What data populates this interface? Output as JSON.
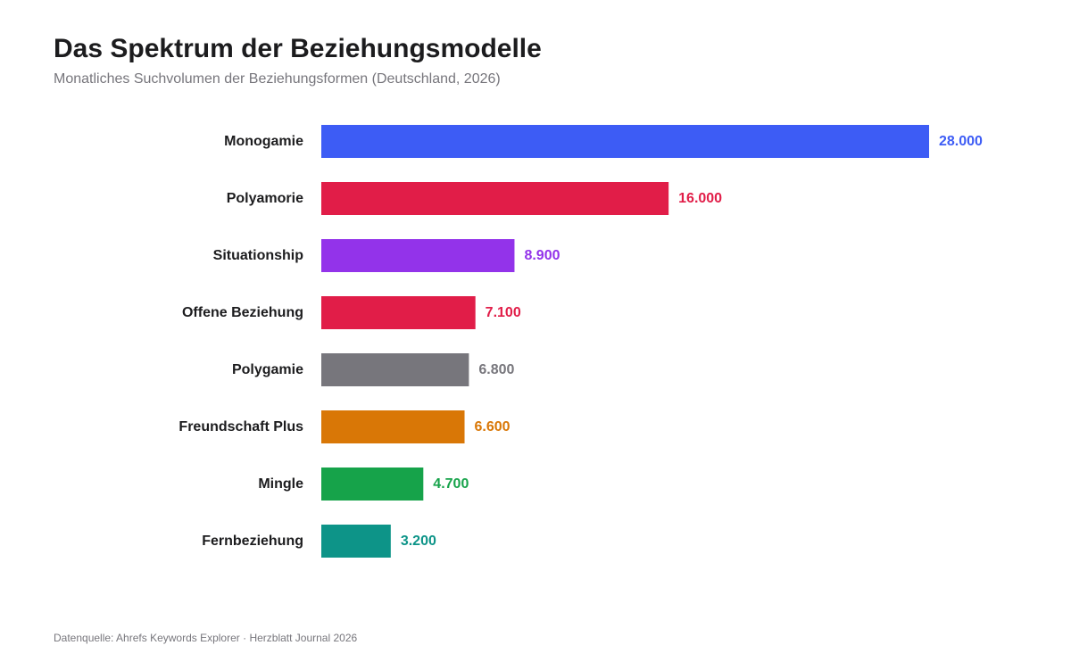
{
  "title": "Das Spektrum der Beziehungsmodelle",
  "subtitle": "Monatliches Suchvolumen der Beziehungsformen (Deutschland, 2026)",
  "source": "Datenquelle: Ahrefs Keywords Explorer · Herzblatt Journal 2026",
  "chart_data": {
    "type": "bar",
    "orientation": "horizontal",
    "title": "Das Spektrum der Beziehungsmodelle",
    "subtitle": "Monatliches Suchvolumen der Beziehungsformen (Deutschland, 2026)",
    "xlabel": "",
    "ylabel": "",
    "grid": false,
    "legend": "none",
    "categories": [
      "Monogamie",
      "Polyamorie",
      "Situationship",
      "Offene Beziehung",
      "Polygamie",
      "Freundschaft Plus",
      "Mingle",
      "Fernbeziehung"
    ],
    "values": [
      28000,
      16000,
      8900,
      7100,
      6800,
      6600,
      4700,
      3200
    ],
    "value_labels": [
      "28.000",
      "16.000",
      "8.900",
      "7.100",
      "6.800",
      "6.600",
      "4.700",
      "3.200"
    ],
    "colors": [
      "#3d5cf5",
      "#e11d48",
      "#9333ea",
      "#e11d48",
      "#77767c",
      "#d97706",
      "#16a34a",
      "#0d9488"
    ],
    "xlim": [
      0,
      28000
    ]
  }
}
